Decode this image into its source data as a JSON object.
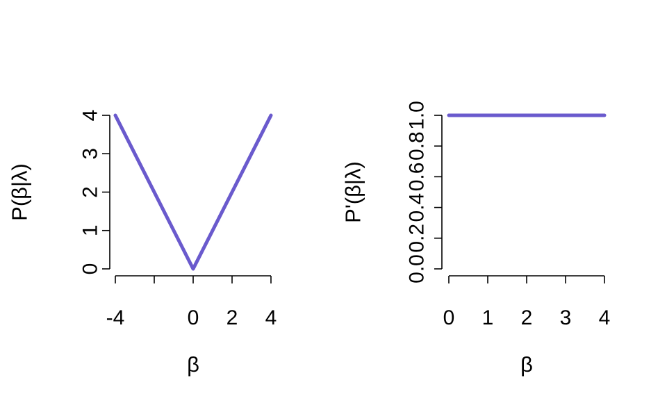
{
  "colors": {
    "line": "#6A5ACD",
    "axis": "#000000",
    "background": "#ffffff"
  },
  "chart_data": [
    {
      "type": "line",
      "title": "",
      "xlabel": "β",
      "ylabel": "P(β|λ)",
      "xlim": [
        -4,
        4
      ],
      "ylim": [
        0,
        4
      ],
      "x_ticks": [
        -4,
        -2,
        0,
        2,
        4
      ],
      "x_tick_labels": [
        "-4",
        "",
        "0",
        "2",
        "4"
      ],
      "y_ticks": [
        0,
        1,
        2,
        3,
        4
      ],
      "y_tick_labels": [
        "0",
        "1",
        "2",
        "3",
        "4"
      ],
      "grid": false,
      "series": [
        {
          "x": [
            -4,
            0,
            4
          ],
          "y": [
            4,
            0,
            4
          ]
        }
      ]
    },
    {
      "type": "line",
      "title": "",
      "xlabel": "β",
      "ylabel": "P'(β|λ)",
      "xlim": [
        0,
        4
      ],
      "ylim": [
        0,
        1
      ],
      "x_ticks": [
        0,
        1,
        2,
        3,
        4
      ],
      "x_tick_labels": [
        "0",
        "1",
        "2",
        "3",
        "4"
      ],
      "y_ticks": [
        0,
        0.2,
        0.4,
        0.6,
        0.8,
        1.0
      ],
      "y_tick_labels": [
        "0.0",
        "0.2",
        "0.4",
        "0.6",
        "0.8",
        "1.0"
      ],
      "grid": false,
      "series": [
        {
          "x": [
            0,
            4
          ],
          "y": [
            1,
            1
          ]
        }
      ]
    }
  ]
}
